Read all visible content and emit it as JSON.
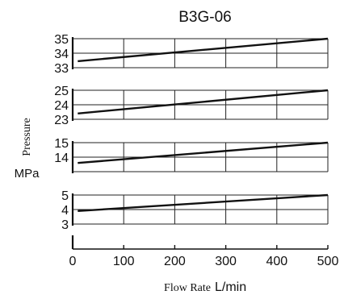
{
  "chart_data": {
    "type": "line",
    "title": "B3G-06",
    "ylabel": "Pressure",
    "ylabel_unit": "MPa",
    "xlabel": "Flow Rate",
    "xlabel_unit": "L/min",
    "xlim": [
      0,
      500
    ],
    "x_ticks": [
      0,
      100,
      200,
      300,
      400,
      500
    ],
    "grid": true,
    "colors": {
      "line": "#111111",
      "grid": "#222222",
      "text": "#111111"
    },
    "panels": [
      {
        "ylim": [
          33,
          35
        ],
        "y_ticks": [
          33,
          34,
          35
        ],
        "series": [
          {
            "x": [
              10,
              500
            ],
            "y": [
              33.45,
              35.0
            ]
          }
        ]
      },
      {
        "ylim": [
          23,
          25
        ],
        "y_ticks": [
          23,
          24,
          25
        ],
        "series": [
          {
            "x": [
              10,
              500
            ],
            "y": [
              23.4,
              25.0
            ]
          }
        ]
      },
      {
        "ylim": [
          13,
          15
        ],
        "y_ticks": [
          14,
          15
        ],
        "series": [
          {
            "x": [
              10,
              500
            ],
            "y": [
              13.6,
              15.0
            ]
          }
        ]
      },
      {
        "ylim": [
          3,
          5
        ],
        "y_ticks": [
          3,
          4,
          5
        ],
        "series": [
          {
            "x": [
              10,
              500
            ],
            "y": [
              3.9,
              5.0
            ]
          }
        ]
      }
    ]
  }
}
